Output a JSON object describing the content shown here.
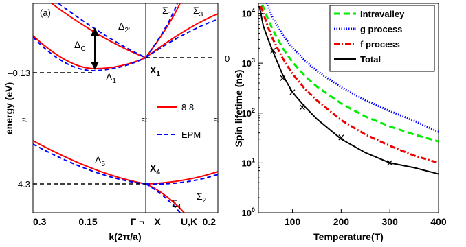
{
  "chart_data": [
    {
      "type": "line",
      "panel_label": "(a)",
      "xlabel": "k(2π/a)",
      "ylabel": "energy (eV)",
      "x_tick_labels": [
        "0.3",
        "0.15",
        "Γ ¬",
        "X",
        "U,K",
        "0.2"
      ],
      "y_tick_labels": [
        "0",
        "–0.13",
        "–4.3"
      ],
      "y_break_mark": "≈",
      "legend": [
        {
          "label": "8 8",
          "color": "#ff0000",
          "style": "solid"
        },
        {
          "label": "EPM",
          "color": "#0000ff",
          "style": "dashed"
        }
      ],
      "annotations": {
        "delta_c": "Δ",
        "delta_c_sub": "C",
        "delta_2p": "Δ",
        "delta_2p_sub": "2'",
        "delta_1": "Δ",
        "delta_1_sub": "1",
        "delta_5": "Δ",
        "delta_5_sub": "5",
        "sigma_1_top": "Σ",
        "sigma_1_top_sub": "1",
        "sigma_3": "Σ",
        "sigma_3_sub": "3",
        "sigma_2": "Σ",
        "sigma_2_sub": "2",
        "sigma_1_bot": "Σ",
        "sigma_1_bot_sub": "1",
        "x1": "X",
        "x1_sub": "1",
        "x4": "X",
        "x4_sub": "4"
      }
    },
    {
      "type": "line",
      "xlabel": "Temperature(T)",
      "ylabel": "Spin lifetime (ns)",
      "xlim": [
        30,
        400
      ],
      "ylim_log10": [
        0,
        4.2
      ],
      "log_y": true,
      "x_ticks": [
        100,
        200,
        300,
        400
      ],
      "x_tick_labels": [
        "100",
        "200",
        "300",
        "400"
      ],
      "y_tick_labels": [
        {
          "base": "10",
          "exp": "0"
        },
        {
          "base": "10",
          "exp": "1"
        },
        {
          "base": "10",
          "exp": "2"
        },
        {
          "base": "10",
          "exp": "3"
        },
        {
          "base": "10",
          "exp": "4"
        }
      ],
      "legend_position": "top-right",
      "series": [
        {
          "name": "Intravalley",
          "color": "#00ee00",
          "style": "dashed",
          "x": [
            38,
            50,
            60,
            80,
            100,
            125,
            150,
            200,
            250,
            300,
            350,
            400
          ],
          "y": [
            15000,
            7500,
            4600,
            2000,
            1050,
            560,
            340,
            155,
            85,
            54,
            37,
            27
          ]
        },
        {
          "name": "g process",
          "color": "#0000ff",
          "style": "dotted",
          "x": [
            45,
            60,
            80,
            100,
            125,
            150,
            200,
            250,
            300,
            350,
            400
          ],
          "y": [
            18000,
            8000,
            3700,
            2000,
            1150,
            700,
            330,
            180,
            110,
            70,
            42
          ]
        },
        {
          "name": "f process",
          "color": "#ee0000",
          "style": "dashdot",
          "x": [
            35,
            50,
            60,
            80,
            100,
            125,
            150,
            200,
            250,
            300,
            350,
            400
          ],
          "y": [
            14000,
            5200,
            3000,
            1250,
            610,
            310,
            180,
            72,
            37,
            22,
            14,
            10
          ]
        },
        {
          "name": "Total",
          "color": "#000000",
          "style": "solid",
          "x": [
            32,
            40,
            50,
            60,
            80,
            100,
            125,
            150,
            200,
            250,
            300,
            350,
            400
          ],
          "y": [
            14000,
            5600,
            3000,
            1700,
            580,
            260,
            135,
            76,
            30,
            16,
            10,
            8,
            6
          ]
        }
      ],
      "markers": {
        "symbol": "×",
        "x": [
          60,
          80,
          100,
          120,
          200,
          300
        ],
        "y": [
          1780,
          500,
          260,
          130,
          32,
          10
        ]
      }
    }
  ]
}
